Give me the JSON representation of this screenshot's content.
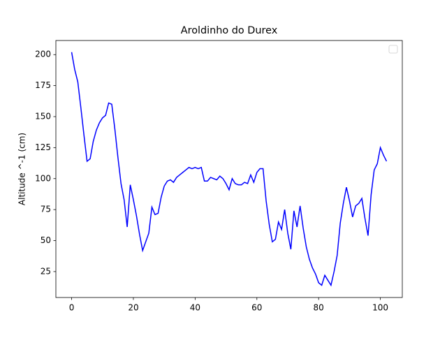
{
  "chart_data": {
    "type": "line",
    "title": "Aroldinho do Durex",
    "y_label": "Altitude ^-1 (cm)",
    "x": [
      0,
      1,
      2,
      3,
      4,
      5,
      6,
      7,
      8,
      9,
      10,
      11,
      12,
      13,
      14,
      15,
      16,
      17,
      18,
      19,
      20,
      21,
      22,
      23,
      24,
      25,
      26,
      27,
      28,
      29,
      30,
      31,
      32,
      33,
      34,
      35,
      36,
      37,
      38,
      39,
      40,
      41,
      42,
      43,
      44,
      45,
      46,
      47,
      48,
      49,
      50,
      51,
      52,
      53,
      54,
      55,
      56,
      57,
      58,
      59,
      60,
      61,
      62,
      63,
      64,
      65,
      66,
      67,
      68,
      69,
      70,
      71,
      72,
      73,
      74,
      75,
      76,
      77,
      78,
      79,
      80,
      81,
      82,
      83,
      84,
      85,
      86,
      87,
      88,
      89,
      90,
      91,
      92,
      93,
      94,
      95,
      96,
      97,
      98,
      99,
      100,
      101,
      102
    ],
    "series": [
      {
        "color": "#0000ff",
        "values": [
          202,
          188,
          178,
          157,
          135,
          114,
          116,
          130,
          139,
          145,
          149,
          151,
          161,
          160,
          140,
          117,
          96,
          83,
          61,
          95,
          83,
          70,
          55,
          42,
          49,
          56,
          77,
          71,
          72,
          85,
          94,
          98,
          99,
          97,
          101,
          103,
          105,
          107,
          109,
          108,
          109,
          108,
          109,
          98,
          98,
          101,
          100,
          99,
          102,
          100,
          96,
          91,
          100,
          96,
          95,
          95,
          97,
          96,
          103,
          97,
          105,
          108,
          108,
          82,
          63,
          49,
          51,
          65,
          59,
          75,
          56,
          43,
          74,
          61,
          78,
          60,
          45,
          35,
          28,
          23,
          16,
          14,
          22,
          18,
          14,
          25,
          38,
          64,
          80,
          93,
          82,
          69,
          78,
          80,
          84,
          68,
          54,
          87,
          107,
          112,
          125,
          119,
          114
        ]
      }
    ],
    "xlim": [
      -5.1,
      107.1
    ],
    "ylim": [
      4.1,
      211.4
    ],
    "xticks": [
      0,
      20,
      40,
      60,
      80,
      100
    ],
    "yticks": [
      25,
      50,
      75,
      100,
      125,
      150,
      175,
      200
    ],
    "legend": "upper right"
  }
}
